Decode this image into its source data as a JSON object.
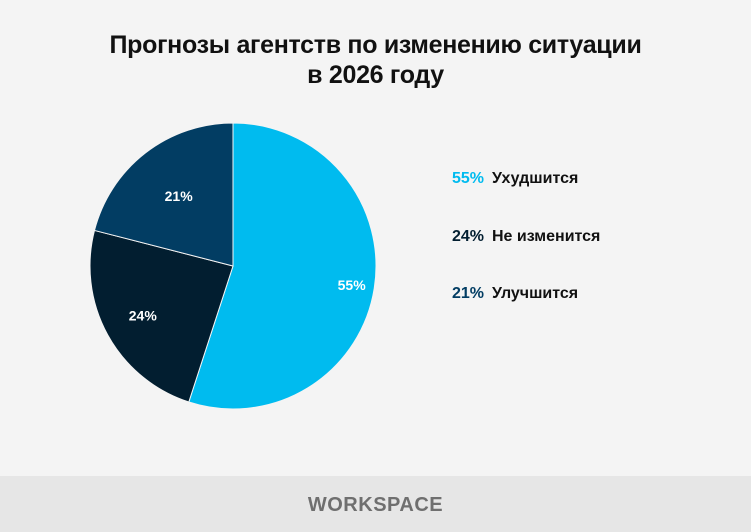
{
  "chart_data": {
    "type": "pie",
    "title_lines": [
      "Прогнозы агентств по изменению ситуации",
      "в 2026 году"
    ],
    "categories": [
      "Ухудшится",
      "Не изменится",
      "Улучшится"
    ],
    "values": [
      55,
      24,
      21
    ],
    "value_labels": [
      "55%",
      "24%",
      "21%"
    ],
    "colors": [
      "#00bbef",
      "#021e30",
      "#023d63"
    ],
    "start_angle": "12 o'clock, clockwise",
    "legend_placement": "right"
  },
  "footer": {
    "logo": "WORKSPACE"
  }
}
